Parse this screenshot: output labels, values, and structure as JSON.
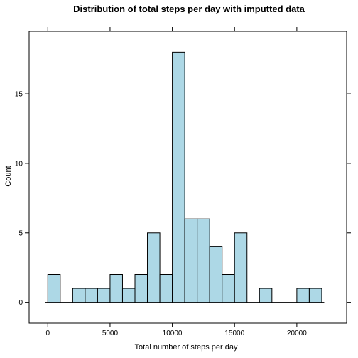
{
  "chart_data": {
    "type": "bar",
    "title": "Distribution of total steps per day with imputted data",
    "xlabel": "Total number of steps per day",
    "ylabel": "Count",
    "xlim": [
      -1500,
      24000
    ],
    "ylim": [
      -1.5,
      19.5
    ],
    "x_ticks": [
      0,
      5000,
      10000,
      15000,
      20000
    ],
    "y_ticks": [
      0,
      5,
      10,
      15
    ],
    "bin_width": 1000,
    "baseline_range": [
      -200,
      22200
    ],
    "grid": false,
    "colors": {
      "bar_fill": "#add8e6",
      "bar_stroke": "#000000"
    },
    "bins": [
      {
        "x_start": 0,
        "x_end": 1000,
        "count": 2
      },
      {
        "x_start": 1000,
        "x_end": 2000,
        "count": 0
      },
      {
        "x_start": 2000,
        "x_end": 3000,
        "count": 1
      },
      {
        "x_start": 3000,
        "x_end": 4000,
        "count": 1
      },
      {
        "x_start": 4000,
        "x_end": 5000,
        "count": 1
      },
      {
        "x_start": 5000,
        "x_end": 6000,
        "count": 2
      },
      {
        "x_start": 6000,
        "x_end": 7000,
        "count": 1
      },
      {
        "x_start": 7000,
        "x_end": 8000,
        "count": 2
      },
      {
        "x_start": 8000,
        "x_end": 9000,
        "count": 5
      },
      {
        "x_start": 9000,
        "x_end": 10000,
        "count": 2
      },
      {
        "x_start": 10000,
        "x_end": 11000,
        "count": 18
      },
      {
        "x_start": 11000,
        "x_end": 12000,
        "count": 6
      },
      {
        "x_start": 12000,
        "x_end": 13000,
        "count": 6
      },
      {
        "x_start": 13000,
        "x_end": 14000,
        "count": 4
      },
      {
        "x_start": 14000,
        "x_end": 15000,
        "count": 2
      },
      {
        "x_start": 15000,
        "x_end": 16000,
        "count": 5
      },
      {
        "x_start": 16000,
        "x_end": 17000,
        "count": 0
      },
      {
        "x_start": 17000,
        "x_end": 18000,
        "count": 1
      },
      {
        "x_start": 18000,
        "x_end": 19000,
        "count": 0
      },
      {
        "x_start": 19000,
        "x_end": 20000,
        "count": 0
      },
      {
        "x_start": 20000,
        "x_end": 21000,
        "count": 1
      },
      {
        "x_start": 21000,
        "x_end": 22000,
        "count": 1
      }
    ]
  }
}
